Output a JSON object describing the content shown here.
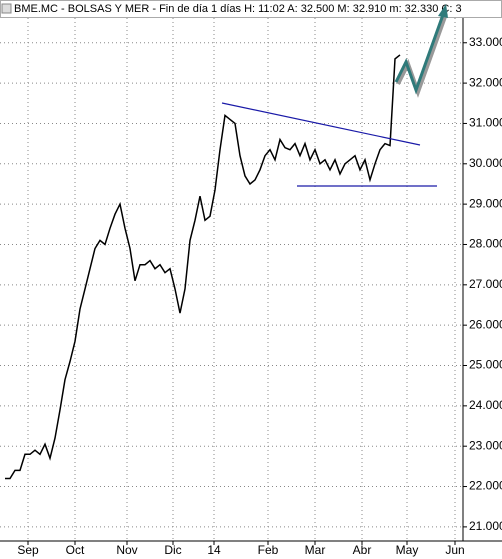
{
  "chart_data": {
    "type": "line",
    "title": "BME.MC - BOLSAS Y MER - Fin de día 1 días  H: 11:02  A: 32.500  M: 32.910  m: 32.330  C: 3",
    "x": [
      0,
      1,
      2,
      3,
      4,
      5,
      6,
      7,
      8,
      9,
      10,
      11,
      12,
      13,
      14,
      15,
      16,
      17,
      18,
      19,
      20,
      21,
      22,
      23,
      24,
      25,
      26,
      27,
      28,
      29,
      30,
      31,
      32,
      33,
      34,
      35,
      36,
      37,
      38,
      39,
      40,
      41,
      42,
      43,
      44,
      45,
      46,
      47,
      48,
      49,
      50,
      51,
      52,
      53,
      54,
      55,
      56,
      57,
      58,
      59,
      60,
      61,
      62,
      63,
      64,
      65,
      66,
      67,
      68,
      69,
      70,
      71,
      72,
      73,
      74,
      75,
      76,
      77,
      78,
      79
    ],
    "series": [
      {
        "color": "#000000",
        "values": [
          22.2,
          22.2,
          22.4,
          22.4,
          22.8,
          22.8,
          22.9,
          22.8,
          23.05,
          22.7,
          23.2,
          23.9,
          24.65,
          25.1,
          25.6,
          26.4,
          26.9,
          27.4,
          27.9,
          28.1,
          28.0,
          28.4,
          28.75,
          29.0,
          28.4,
          27.9,
          27.1,
          27.5,
          27.5,
          27.6,
          27.4,
          27.5,
          27.3,
          27.4,
          26.9,
          26.3,
          26.9,
          28.1,
          28.6,
          29.2,
          28.6,
          28.7,
          29.35,
          30.35,
          31.2,
          31.1,
          31.0,
          30.2,
          29.7,
          29.5,
          29.6,
          29.85,
          30.2,
          30.35,
          30.1,
          30.6,
          30.4,
          30.35,
          30.5,
          30.2,
          30.5,
          30.1,
          30.35,
          30.0,
          30.1,
          29.85,
          30.1,
          29.75,
          30.0,
          30.1,
          30.2,
          29.85,
          30.1,
          29.6,
          30.0,
          30.35,
          30.5,
          30.45,
          32.6,
          32.7
        ]
      }
    ],
    "xlim": [
      -1,
      91.6
    ],
    "xticks": [
      {
        "value": 4.6,
        "label": "Sep"
      },
      {
        "value": 14,
        "label": "Oct"
      },
      {
        "value": 24.4,
        "label": "Nov"
      },
      {
        "value": 33.6,
        "label": "Dic"
      },
      {
        "value": 41.8,
        "label": "14"
      },
      {
        "value": 52.6,
        "label": "Feb"
      },
      {
        "value": 62,
        "label": "Mar"
      },
      {
        "value": 71.4,
        "label": "Abr"
      },
      {
        "value": 80.4,
        "label": "May"
      },
      {
        "value": 90,
        "label": "Jun"
      }
    ],
    "ylim": [
      20.65,
      34.06
    ],
    "yticks": [
      {
        "value": 21,
        "label": "21.000"
      },
      {
        "value": 22,
        "label": "22.000"
      },
      {
        "value": 23,
        "label": "23.000"
      },
      {
        "value": 24,
        "label": "24.000"
      },
      {
        "value": 25,
        "label": "25.000"
      },
      {
        "value": 26,
        "label": "26.000"
      },
      {
        "value": 27,
        "label": "27.000"
      },
      {
        "value": 28,
        "label": "28.000"
      },
      {
        "value": 29,
        "label": "29.000"
      },
      {
        "value": 30,
        "label": "30.000"
      },
      {
        "value": 31,
        "label": "31.000"
      },
      {
        "value": 32,
        "label": "32.000"
      },
      {
        "value": 33,
        "label": "33.000"
      }
    ],
    "grid": true
  }
}
